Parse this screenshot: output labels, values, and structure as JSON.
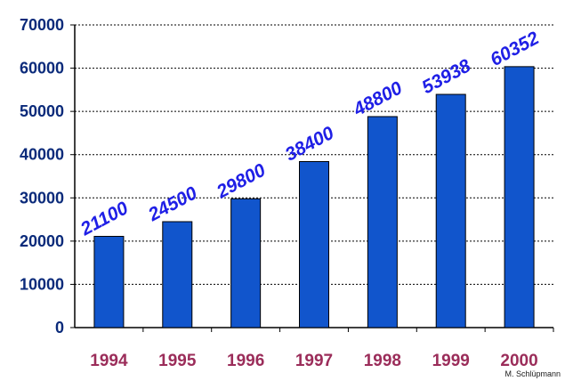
{
  "chart_data": {
    "type": "bar",
    "categories": [
      "1994",
      "1995",
      "1996",
      "1997",
      "1998",
      "1999",
      "2000"
    ],
    "values": [
      21100,
      24500,
      29800,
      38400,
      48800,
      53938,
      60352
    ],
    "data_labels": [
      "21100",
      "24500",
      "29800",
      "38400",
      "48800",
      "53938",
      "60352"
    ],
    "y_ticks": [
      "0",
      "10000",
      "20000",
      "30000",
      "40000",
      "50000",
      "60000",
      "70000"
    ],
    "ylim": [
      0,
      70000
    ],
    "grid": "horizontal-dashed",
    "title": "",
    "xlabel": "",
    "ylabel": "",
    "colors": {
      "bar": "#1155cc",
      "bar_edge": "#000000",
      "data_label": "#1f1fe6",
      "x_tick": "#9b2d5a",
      "y_tick": "#0a2a7a",
      "grid": "#000000"
    }
  },
  "credit": "M. Schlüpmann"
}
